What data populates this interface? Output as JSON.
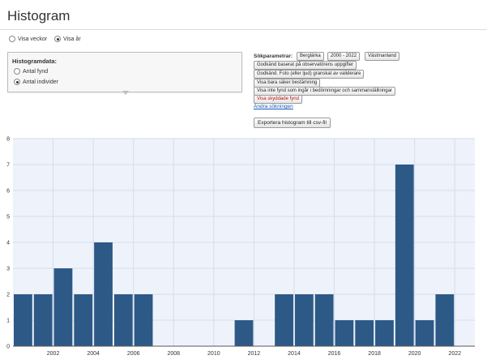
{
  "page": {
    "title": "Histogram"
  },
  "period": {
    "options": [
      {
        "label": "Visa veckor",
        "selected": false
      },
      {
        "label": "Visa år",
        "selected": true
      }
    ]
  },
  "histogram_data": {
    "heading": "Histogramdata:",
    "options": [
      {
        "label": "Antal fynd",
        "selected": false
      },
      {
        "label": "Antal individer",
        "selected": true
      }
    ]
  },
  "search_params": {
    "label": "Sökparametrar:",
    "chips": [
      "Berglärka",
      "2000 - 2022",
      "Västmanland",
      "Godkänd baserat på observatörens uppgifter",
      "Godkänd. Foto (eller ljud) granskat av validerare",
      "Visa bara säker bestämning",
      "Visa inte fynd som ingår i bedömningar och sammanställningar",
      "Visa skyddade fynd"
    ],
    "change_link": "Ändra sökningen",
    "export_button": "Exportera histogram till csv-fil"
  },
  "colors": {
    "bar": "#2d5986",
    "plot_bg": "#eef3fb",
    "grid": "#d4dded",
    "warn_text": "#aa1111"
  },
  "chart_data": {
    "type": "bar",
    "title": "",
    "xlabel": "",
    "ylabel": "",
    "categories": [
      2000,
      2001,
      2002,
      2003,
      2004,
      2005,
      2006,
      2007,
      2008,
      2009,
      2010,
      2011,
      2012,
      2013,
      2014,
      2015,
      2016,
      2017,
      2018,
      2019,
      2020,
      2021,
      2022
    ],
    "values": [
      2,
      2,
      3,
      2,
      4,
      2,
      2,
      0,
      0,
      0,
      0,
      1,
      0,
      2,
      2,
      2,
      1,
      1,
      1,
      7,
      1,
      2,
      0
    ],
    "x_tick_labels": [
      "2002",
      "2004",
      "2006",
      "2008",
      "2010",
      "2012",
      "2014",
      "2016",
      "2018",
      "2020",
      "2022"
    ],
    "y_ticks": [
      "0",
      "1",
      "2",
      "3",
      "4",
      "5",
      "6",
      "7",
      "8"
    ],
    "ylim": [
      0,
      8
    ],
    "grid": true,
    "legend": "none"
  }
}
